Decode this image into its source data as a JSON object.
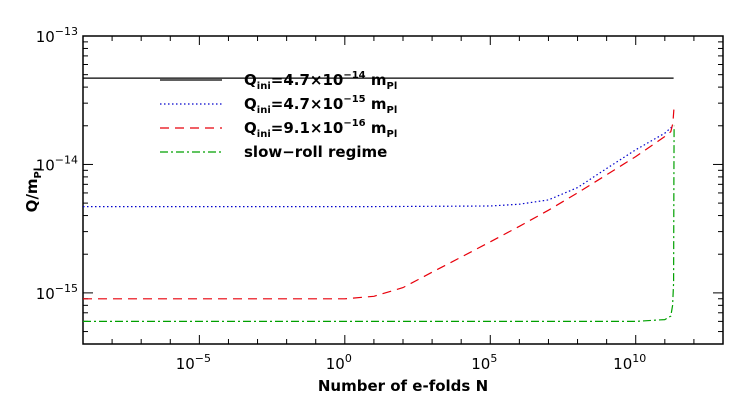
{
  "chart_data": {
    "type": "line",
    "title": "",
    "xlabel": "Number of e-folds N",
    "ylabel_main": "Q/m",
    "ylabel_sub": "Pl",
    "xscale": "log",
    "yscale": "log",
    "xlim": [
      1e-09,
      10000000000000.0
    ],
    "ylim": [
      4e-16,
      1e-13
    ],
    "xticks": [
      {
        "value": 1e-05,
        "base": "10",
        "exp": "−5"
      },
      {
        "value": 1.0,
        "base": "10",
        "exp": "0"
      },
      {
        "value": 100000.0,
        "base": "10",
        "exp": "5"
      },
      {
        "value": 10000000000.0,
        "base": "10",
        "exp": "10"
      }
    ],
    "yticks": [
      {
        "value": 1e-15,
        "base": "10",
        "exp": "−15"
      },
      {
        "value": 1e-14,
        "base": "10",
        "exp": "−14"
      },
      {
        "value": 1e-13,
        "base": "10",
        "exp": "−13"
      }
    ],
    "grid": false,
    "legend_position": "upper-left",
    "series": [
      {
        "name": "Q_ini=4.7×10^-14 m_Pl",
        "label": {
          "pre": "Q",
          "sub": "ini",
          "mid": "=4.7×10",
          "sup": "−14",
          "post": " m",
          "sub2": "Pl"
        },
        "color": "#000000",
        "dash": "",
        "points": [
          [
            1e-09,
            4.7e-14
          ],
          [
            200000000000.0,
            4.7e-14
          ]
        ]
      },
      {
        "name": "Q_ini=4.7×10^-15 m_Pl",
        "label": {
          "pre": "Q",
          "sub": "ini",
          "mid": "=4.7×10",
          "sup": "−15",
          "post": " m",
          "sub2": "Pl"
        },
        "color": "#0000cc",
        "dash": "1.5,2.5",
        "points": [
          [
            1e-09,
            4.7e-15
          ],
          [
            10.0,
            4.7e-15
          ],
          [
            100000.0,
            4.75e-15
          ],
          [
            1000000.0,
            4.9e-15
          ],
          [
            10000000.0,
            5.3e-15
          ],
          [
            100000000.0,
            6.6e-15
          ],
          [
            1000000000.0,
            9.3e-15
          ],
          [
            10000000000.0,
            1.3e-14
          ],
          [
            100000000000.0,
            1.75e-14
          ],
          [
            170000000000.0,
            1.95e-14
          ]
        ]
      },
      {
        "name": "Q_ini=9.1×10^-16 m_Pl",
        "label": {
          "pre": "Q",
          "sub": "ini",
          "mid": "=9.1×10",
          "sup": "−16",
          "post": " m",
          "sub2": "Pl"
        },
        "color": "#e8000b",
        "dash": "9,6",
        "points": [
          [
            1e-09,
            9e-16
          ],
          [
            1.0,
            9e-16
          ],
          [
            10.0,
            9.4e-16
          ],
          [
            100.0,
            1.1e-15
          ],
          [
            1000.0,
            1.45e-15
          ],
          [
            10000.0,
            1.9e-15
          ],
          [
            100000.0,
            2.5e-15
          ],
          [
            1000000.0,
            3.3e-15
          ],
          [
            10000000.0,
            4.4e-15
          ],
          [
            100000000.0,
            6e-15
          ],
          [
            1000000000.0,
            8.3e-15
          ],
          [
            10000000000.0,
            1.15e-14
          ],
          [
            100000000000.0,
            1.65e-14
          ],
          [
            160000000000.0,
            1.8e-14
          ],
          [
            190000000000.0,
            2.1e-14
          ],
          [
            205000000000.0,
            2.7e-14
          ]
        ]
      },
      {
        "name": "slow-roll regime",
        "label": {
          "pre": "slow−roll regime",
          "sub": "",
          "mid": "",
          "sup": "",
          "post": "",
          "sub2": ""
        },
        "color": "#00a000",
        "dash": "8,3,2,3",
        "points": [
          [
            1e-09,
            6e-16
          ],
          [
            10000000000.0,
            6e-16
          ],
          [
            100000000000.0,
            6.2e-16
          ],
          [
            160000000000.0,
            6.6e-16
          ],
          [
            185000000000.0,
            8e-16
          ],
          [
            200000000000.0,
            1.2e-15
          ],
          [
            205000000000.0,
            8e-15
          ],
          [
            208000000000.0,
            2e-14
          ]
        ]
      }
    ]
  }
}
